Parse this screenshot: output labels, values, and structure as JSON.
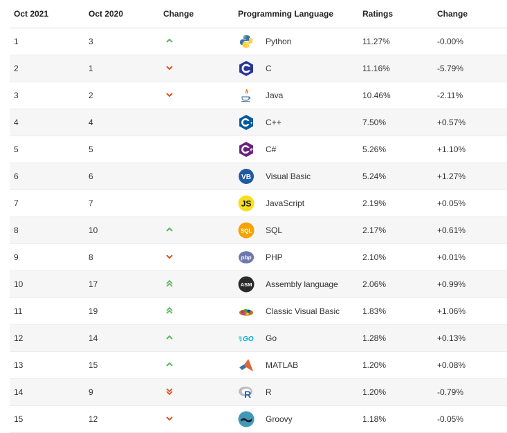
{
  "header": {
    "col_oct2021": "Oct 2021",
    "col_oct2020": "Oct 2020",
    "col_change": "Change",
    "col_language": "Programming Language",
    "col_ratings": "Ratings",
    "col_change2": "Change"
  },
  "rows": [
    {
      "rank": "1",
      "prev": "3",
      "trend": "up",
      "logo": "python-icon",
      "language": "Python",
      "rating": "11.27%",
      "delta": "-0.00%"
    },
    {
      "rank": "2",
      "prev": "1",
      "trend": "down",
      "logo": "c-icon",
      "language": "C",
      "rating": "11.16%",
      "delta": "-5.79%"
    },
    {
      "rank": "3",
      "prev": "2",
      "trend": "down",
      "logo": "java-icon",
      "language": "Java",
      "rating": "10.46%",
      "delta": "-2.11%"
    },
    {
      "rank": "4",
      "prev": "4",
      "trend": "none",
      "logo": "cpp-icon",
      "language": "C++",
      "rating": "7.50%",
      "delta": "+0.57%"
    },
    {
      "rank": "5",
      "prev": "5",
      "trend": "none",
      "logo": "csharp-icon",
      "language": "C#",
      "rating": "5.26%",
      "delta": "+1.10%"
    },
    {
      "rank": "6",
      "prev": "6",
      "trend": "none",
      "logo": "vb-icon",
      "language": "Visual Basic",
      "rating": "5.24%",
      "delta": "+1.27%"
    },
    {
      "rank": "7",
      "prev": "7",
      "trend": "none",
      "logo": "js-icon",
      "language": "JavaScript",
      "rating": "2.19%",
      "delta": "+0.05%"
    },
    {
      "rank": "8",
      "prev": "10",
      "trend": "up",
      "logo": "sql-icon",
      "language": "SQL",
      "rating": "2.17%",
      "delta": "+0.61%"
    },
    {
      "rank": "9",
      "prev": "8",
      "trend": "down",
      "logo": "php-icon",
      "language": "PHP",
      "rating": "2.10%",
      "delta": "+0.01%"
    },
    {
      "rank": "10",
      "prev": "17",
      "trend": "double-up",
      "logo": "asm-icon",
      "language": "Assembly language",
      "rating": "2.06%",
      "delta": "+0.99%"
    },
    {
      "rank": "11",
      "prev": "19",
      "trend": "double-up",
      "logo": "classic-vb-icon",
      "language": "Classic Visual Basic",
      "rating": "1.83%",
      "delta": "+1.06%"
    },
    {
      "rank": "12",
      "prev": "14",
      "trend": "up",
      "logo": "go-icon",
      "language": "Go",
      "rating": "1.28%",
      "delta": "+0.13%"
    },
    {
      "rank": "13",
      "prev": "15",
      "trend": "up",
      "logo": "matlab-icon",
      "language": "MATLAB",
      "rating": "1.20%",
      "delta": "+0.08%"
    },
    {
      "rank": "14",
      "prev": "9",
      "trend": "double-down",
      "logo": "r-icon",
      "language": "R",
      "rating": "1.20%",
      "delta": "-0.79%"
    },
    {
      "rank": "15",
      "prev": "12",
      "trend": "down",
      "logo": "groovy-icon",
      "language": "Groovy",
      "rating": "1.18%",
      "delta": "-0.05%"
    }
  ],
  "logo_text": {
    "c": "C",
    "vb": "VB",
    "js": "JS",
    "sql": "SQL",
    "php": "php",
    "asm": "ASM",
    "go": "GO",
    "r": "R"
  },
  "colors": {
    "up": "#5cb85c",
    "down": "#e0531f"
  }
}
